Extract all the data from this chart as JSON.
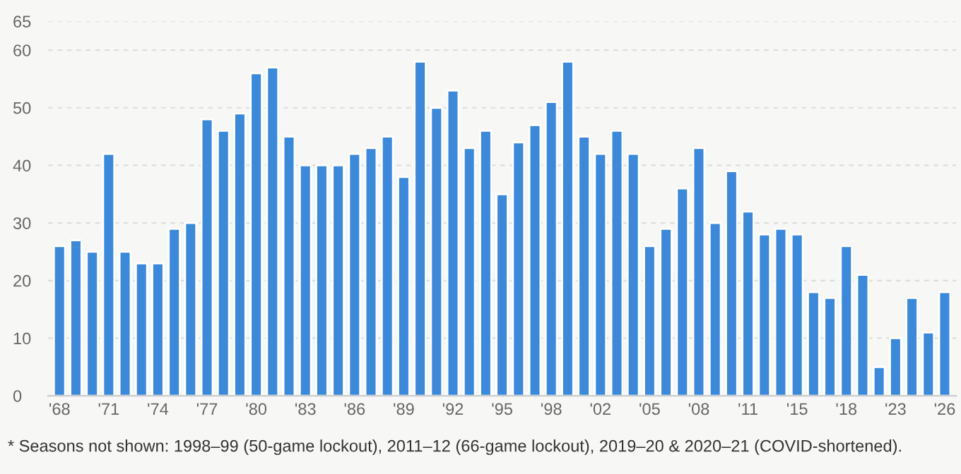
{
  "chart_data": {
    "type": "bar",
    "categories": [
      "'68",
      null,
      null,
      "'71",
      null,
      null,
      "'74",
      null,
      null,
      "'77",
      null,
      null,
      "'80",
      null,
      null,
      "'83",
      null,
      null,
      "'86",
      null,
      null,
      "'89",
      null,
      null,
      "'92",
      null,
      null,
      "'95",
      null,
      null,
      "'98",
      null,
      null,
      "'02",
      null,
      null,
      "'05",
      null,
      null,
      "'08",
      null,
      null,
      "'11",
      null,
      null,
      "'15",
      null,
      null,
      "'18",
      null,
      null,
      "'23",
      null,
      null,
      "'26"
    ],
    "values": [
      26,
      27,
      25,
      42,
      25,
      23,
      23,
      29,
      30,
      48,
      46,
      49,
      56,
      57,
      45,
      40,
      40,
      40,
      42,
      43,
      45,
      38,
      58,
      50,
      53,
      43,
      46,
      35,
      44,
      47,
      51,
      58,
      45,
      42,
      46,
      42,
      26,
      29,
      36,
      43,
      30,
      39,
      32,
      28,
      29,
      28,
      18,
      17,
      26,
      21,
      5,
      10,
      17,
      11,
      18
    ],
    "color": "#3a89dc",
    "ylim": [
      0,
      65
    ],
    "yticks": [
      0,
      10,
      20,
      30,
      40,
      50,
      60,
      65
    ],
    "grid": "y",
    "annotations": [
      "* Seasons not shown: 1998–99 (50-game lockout), 2011–12 (66-game lockout), 2019–20 & 2020–21 (COVID-shortened)."
    ]
  }
}
